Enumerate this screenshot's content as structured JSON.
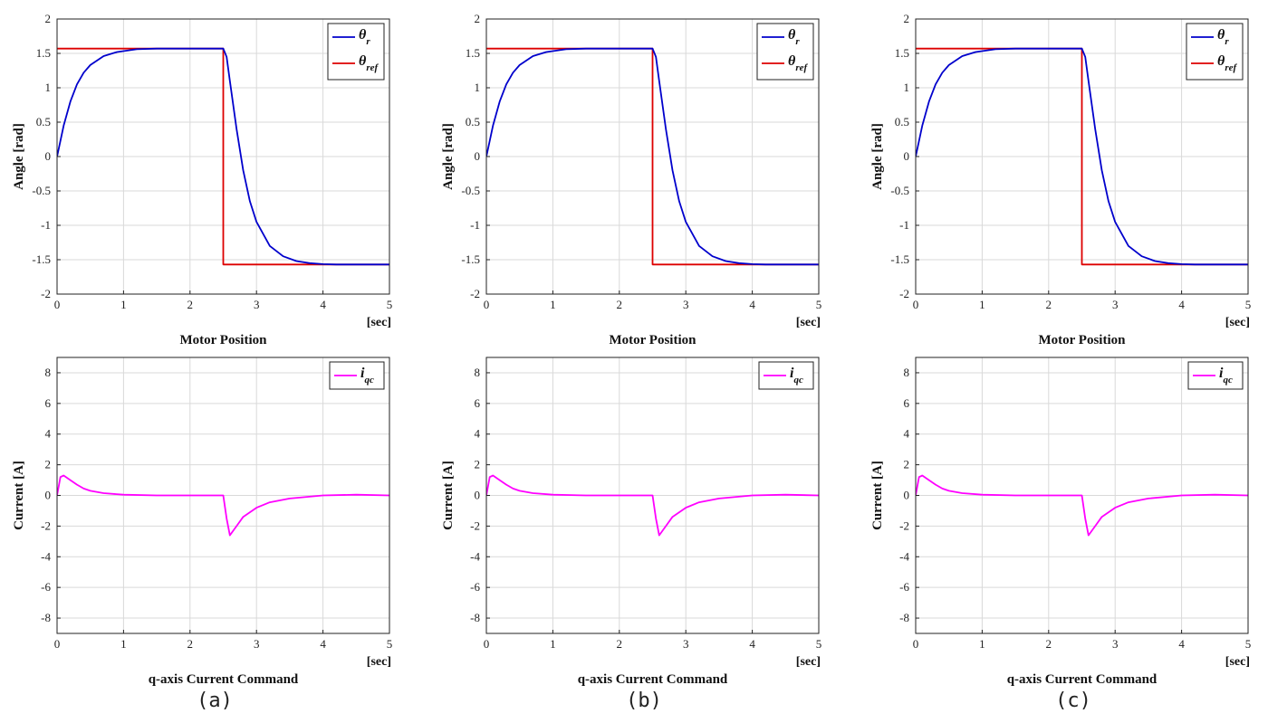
{
  "panels": [
    {
      "label": "(a)",
      "cx": 237
    },
    {
      "label": "(b)",
      "cx": 711
    },
    {
      "label": "(c)",
      "cx": 1185
    }
  ],
  "colors": {
    "theta_r": "#0000CC",
    "theta_ref": "#DD0000",
    "i_qc": "#FF00FF",
    "grid": "#D9D9D9"
  },
  "chart_data": [
    {
      "type": "line",
      "panel": "(a)",
      "title": "Motor Position",
      "xlabel": "[sec]",
      "ylabel": "Angle [rad]",
      "xlim": [
        0,
        5
      ],
      "ylim": [
        -2,
        2
      ],
      "xticks": [
        0,
        1,
        2,
        3,
        4,
        5
      ],
      "yticks": [
        2,
        1.5,
        1,
        0.5,
        0,
        -0.5,
        -1,
        -1.5,
        -2
      ],
      "grid": true,
      "legend": "top-right",
      "series": [
        {
          "name": "θr",
          "sym": "θ",
          "sub": "r",
          "x": [
            0,
            0.1,
            0.2,
            0.3,
            0.4,
            0.5,
            0.7,
            0.9,
            1.2,
            1.5,
            2.0,
            2.5,
            2.55,
            2.6,
            2.7,
            2.8,
            2.9,
            3.0,
            3.2,
            3.4,
            3.6,
            3.8,
            4.0,
            4.2,
            4.5,
            5.0
          ],
          "y": [
            0,
            0.45,
            0.8,
            1.05,
            1.22,
            1.33,
            1.46,
            1.52,
            1.56,
            1.57,
            1.57,
            1.57,
            1.45,
            1.1,
            0.4,
            -0.2,
            -0.65,
            -0.95,
            -1.3,
            -1.45,
            -1.52,
            -1.55,
            -1.565,
            -1.57,
            -1.57,
            -1.57
          ]
        },
        {
          "name": "θref",
          "sym": "θ",
          "sub": "ref",
          "x": [
            0,
            2.5,
            2.5,
            5
          ],
          "y": [
            1.57,
            1.57,
            -1.57,
            -1.57
          ]
        }
      ]
    },
    {
      "type": "line",
      "panel": "(a)",
      "title": "q-axis Current Command",
      "xlabel": "[sec]",
      "ylabel": "Current [A]",
      "xlim": [
        0,
        5
      ],
      "ylim": [
        -9,
        9
      ],
      "xticks": [
        0,
        1,
        2,
        3,
        4,
        5
      ],
      "yticks": [
        8,
        6,
        4,
        2,
        0,
        -2,
        -4,
        -6,
        -8
      ],
      "grid": true,
      "legend": "top-right",
      "series": [
        {
          "name": "iqc",
          "sym": "i",
          "sub": "qc",
          "x": [
            0,
            0.05,
            0.1,
            0.2,
            0.3,
            0.4,
            0.5,
            0.7,
            1.0,
            1.5,
            2.0,
            2.5,
            2.55,
            2.6,
            2.7,
            2.8,
            3.0,
            3.2,
            3.5,
            4.0,
            4.5,
            5.0
          ],
          "y": [
            0,
            1.2,
            1.3,
            1.0,
            0.7,
            0.45,
            0.3,
            0.15,
            0.05,
            0,
            0,
            0,
            -1.5,
            -2.6,
            -2.0,
            -1.4,
            -0.8,
            -0.45,
            -0.2,
            0,
            0.05,
            0
          ]
        }
      ]
    },
    {
      "type": "line",
      "panel": "(b)",
      "title": "Motor Position",
      "xlabel": "[sec]",
      "ylabel": "Angle [rad]",
      "xlim": [
        0,
        5
      ],
      "ylim": [
        -2,
        2
      ],
      "xticks": [
        0,
        1,
        2,
        3,
        4,
        5
      ],
      "yticks": [
        2,
        1.5,
        1,
        0.5,
        0,
        -0.5,
        -1,
        -1.5,
        -2
      ],
      "grid": true,
      "legend": "top-right",
      "series": [
        {
          "name": "θr",
          "sym": "θ",
          "sub": "r",
          "x": [
            0,
            0.1,
            0.2,
            0.3,
            0.4,
            0.5,
            0.7,
            0.9,
            1.2,
            1.5,
            2.0,
            2.5,
            2.55,
            2.6,
            2.7,
            2.8,
            2.9,
            3.0,
            3.2,
            3.4,
            3.6,
            3.8,
            4.0,
            4.2,
            4.5,
            5.0
          ],
          "y": [
            0,
            0.45,
            0.8,
            1.05,
            1.22,
            1.33,
            1.46,
            1.52,
            1.56,
            1.57,
            1.57,
            1.57,
            1.45,
            1.1,
            0.4,
            -0.2,
            -0.65,
            -0.95,
            -1.3,
            -1.45,
            -1.52,
            -1.55,
            -1.565,
            -1.57,
            -1.57,
            -1.57
          ]
        },
        {
          "name": "θref",
          "sym": "θ",
          "sub": "ref",
          "x": [
            0,
            2.5,
            2.5,
            5
          ],
          "y": [
            1.57,
            1.57,
            -1.57,
            -1.57
          ]
        }
      ]
    },
    {
      "type": "line",
      "panel": "(b)",
      "title": "q-axis Current Command",
      "xlabel": "[sec]",
      "ylabel": "Current [A]",
      "xlim": [
        0,
        5
      ],
      "ylim": [
        -9,
        9
      ],
      "xticks": [
        0,
        1,
        2,
        3,
        4,
        5
      ],
      "yticks": [
        8,
        6,
        4,
        2,
        0,
        -2,
        -4,
        -6,
        -8
      ],
      "grid": true,
      "legend": "top-right",
      "series": [
        {
          "name": "iqc",
          "sym": "i",
          "sub": "qc",
          "x": [
            0,
            0.05,
            0.1,
            0.2,
            0.3,
            0.4,
            0.5,
            0.7,
            1.0,
            1.5,
            2.0,
            2.5,
            2.55,
            2.6,
            2.7,
            2.8,
            3.0,
            3.2,
            3.5,
            4.0,
            4.5,
            5.0
          ],
          "y": [
            0,
            1.2,
            1.3,
            1.0,
            0.7,
            0.45,
            0.3,
            0.15,
            0.05,
            0,
            0,
            0,
            -1.5,
            -2.6,
            -2.0,
            -1.4,
            -0.8,
            -0.45,
            -0.2,
            0,
            0.05,
            0
          ]
        }
      ]
    },
    {
      "type": "line",
      "panel": "(c)",
      "title": "Motor Position",
      "xlabel": "[sec]",
      "ylabel": "Angle [rad]",
      "xlim": [
        0,
        5
      ],
      "ylim": [
        -2,
        2
      ],
      "xticks": [
        0,
        1,
        2,
        3,
        4,
        5
      ],
      "yticks": [
        2,
        1.5,
        1,
        0.5,
        0,
        -0.5,
        -1,
        -1.5,
        -2
      ],
      "grid": true,
      "legend": "top-right",
      "series": [
        {
          "name": "θr",
          "sym": "θ",
          "sub": "r",
          "x": [
            0,
            0.1,
            0.2,
            0.3,
            0.4,
            0.5,
            0.7,
            0.9,
            1.2,
            1.5,
            2.0,
            2.5,
            2.55,
            2.6,
            2.7,
            2.8,
            2.9,
            3.0,
            3.2,
            3.4,
            3.6,
            3.8,
            4.0,
            4.2,
            4.5,
            5.0
          ],
          "y": [
            0,
            0.45,
            0.8,
            1.05,
            1.22,
            1.33,
            1.46,
            1.52,
            1.56,
            1.57,
            1.57,
            1.57,
            1.45,
            1.1,
            0.4,
            -0.2,
            -0.65,
            -0.95,
            -1.3,
            -1.45,
            -1.52,
            -1.55,
            -1.565,
            -1.57,
            -1.57,
            -1.57
          ]
        },
        {
          "name": "θref",
          "sym": "θ",
          "sub": "ref",
          "x": [
            0,
            2.5,
            2.5,
            5
          ],
          "y": [
            1.57,
            1.57,
            -1.57,
            -1.57
          ]
        }
      ]
    },
    {
      "type": "line",
      "panel": "(c)",
      "title": "q-axis Current Command",
      "xlabel": "[sec]",
      "ylabel": "Current [A]",
      "xlim": [
        0,
        5
      ],
      "ylim": [
        -9,
        9
      ],
      "xticks": [
        0,
        1,
        2,
        3,
        4,
        5
      ],
      "yticks": [
        8,
        6,
        4,
        2,
        0,
        -2,
        -4,
        -6,
        -8
      ],
      "grid": true,
      "legend": "top-right",
      "series": [
        {
          "name": "iqc",
          "sym": "i",
          "sub": "qc",
          "x": [
            0,
            0.05,
            0.1,
            0.2,
            0.3,
            0.4,
            0.5,
            0.7,
            1.0,
            1.5,
            2.0,
            2.5,
            2.55,
            2.6,
            2.7,
            2.8,
            3.0,
            3.2,
            3.5,
            4.0,
            4.5,
            5.0
          ],
          "y": [
            0,
            1.2,
            1.3,
            1.0,
            0.7,
            0.45,
            0.3,
            0.15,
            0.05,
            0,
            0,
            0,
            -1.5,
            -2.6,
            -2.0,
            -1.4,
            -0.8,
            -0.45,
            -0.2,
            0,
            0.05,
            0
          ]
        }
      ]
    }
  ]
}
